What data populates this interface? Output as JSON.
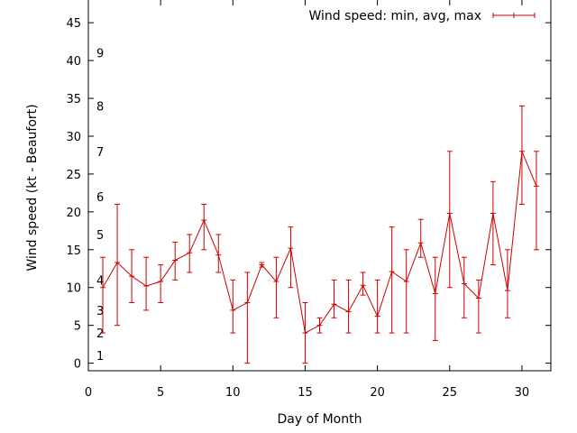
{
  "chart_data": {
    "type": "line",
    "title": "",
    "xlabel": "Day of Month",
    "ylabel": "Wind speed (kt - Beaufort)",
    "xlim": [
      0,
      32
    ],
    "ylim": [
      -1,
      48
    ],
    "xticks": [
      0,
      5,
      10,
      15,
      20,
      25,
      30
    ],
    "yticks": [
      0,
      5,
      10,
      15,
      20,
      25,
      30,
      35,
      40,
      45
    ],
    "grid": false,
    "legend_position": "top-right",
    "beaufort_scale": [
      {
        "label": "1",
        "value": 1
      },
      {
        "label": "2",
        "value": 4
      },
      {
        "label": "3",
        "value": 7
      },
      {
        "label": "4",
        "value": 11
      },
      {
        "label": "5",
        "value": 17
      },
      {
        "label": "6",
        "value": 22
      },
      {
        "label": "7",
        "value": 28
      },
      {
        "label": "8",
        "value": 34
      },
      {
        "label": "9",
        "value": 41
      }
    ],
    "series": [
      {
        "name": "Wind speed: min, avg, max",
        "color": "#cc0000",
        "x": [
          1,
          2,
          3,
          4,
          5,
          6,
          7,
          8,
          9,
          10,
          11,
          12,
          13,
          14,
          15,
          16,
          17,
          18,
          19,
          20,
          21,
          22,
          23,
          24,
          25,
          26,
          27,
          28,
          29,
          30,
          31
        ],
        "avg": [
          10,
          13.3,
          11.5,
          10.2,
          10.8,
          13.6,
          14.6,
          18.9,
          14.3,
          7.0,
          8.0,
          13.0,
          10.8,
          15.2,
          4.0,
          5.0,
          7.8,
          6.8,
          10.3,
          6.2,
          12.1,
          10.8,
          15.9,
          9.2,
          19.8,
          10.5,
          8.6,
          19.8,
          9.6,
          28.0,
          23.4
        ],
        "min": [
          4,
          5,
          8,
          7,
          8,
          11,
          12,
          15,
          12,
          4,
          0,
          12.7,
          6,
          10,
          0,
          4,
          6,
          4,
          9,
          4,
          4,
          4,
          14,
          3,
          10,
          6,
          4,
          13,
          6,
          21,
          15
        ],
        "max": [
          14,
          21,
          15,
          14,
          13,
          16,
          17,
          21,
          17,
          11,
          12,
          13.3,
          14,
          18,
          8,
          6,
          11,
          11,
          12,
          11,
          18,
          15,
          19,
          14,
          28,
          14,
          11,
          24,
          15,
          34,
          28
        ]
      }
    ]
  }
}
